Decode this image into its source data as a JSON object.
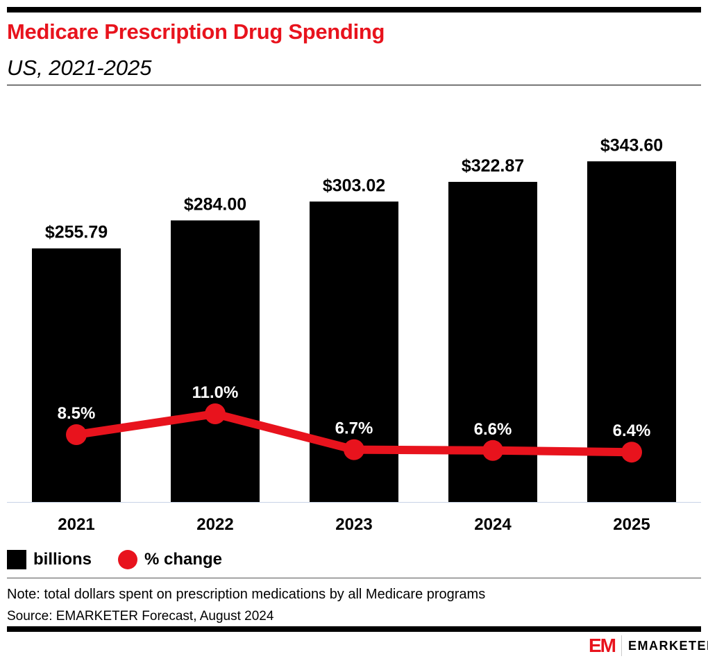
{
  "header": {
    "title": "Medicare Prescription Drug Spending",
    "subtitle": "US, 2021-2025"
  },
  "chart_data": {
    "type": "bar",
    "title": "Medicare Prescription Drug Spending",
    "subtitle": "US, 2021-2025",
    "categories": [
      "2021",
      "2022",
      "2023",
      "2024",
      "2025"
    ],
    "series": [
      {
        "name": "billions",
        "type": "bar",
        "values": [
          255.79,
          284.0,
          303.02,
          322.87,
          343.6
        ],
        "labels": [
          "$255.79",
          "$284.00",
          "$303.02",
          "$322.87",
          "$343.60"
        ],
        "color": "#000000"
      },
      {
        "name": "% change",
        "type": "line",
        "values": [
          8.5,
          11.0,
          6.7,
          6.6,
          6.4
        ],
        "labels": [
          "8.5%",
          "11.0%",
          "6.7%",
          "6.6%",
          "6.4%"
        ],
        "color": "#e8131d"
      }
    ],
    "ylim": [
      0,
      360
    ],
    "grid": false,
    "legend": "bottom-left"
  },
  "legend": {
    "bar_label": "billions",
    "line_label": "% change"
  },
  "footer": {
    "note": "Note: total dollars spent on prescription medications by all Medicare programs",
    "source": "Source: EMARKETER Forecast, August 2024"
  },
  "logo": {
    "mark": "EM",
    "text": "EMARKETER"
  }
}
